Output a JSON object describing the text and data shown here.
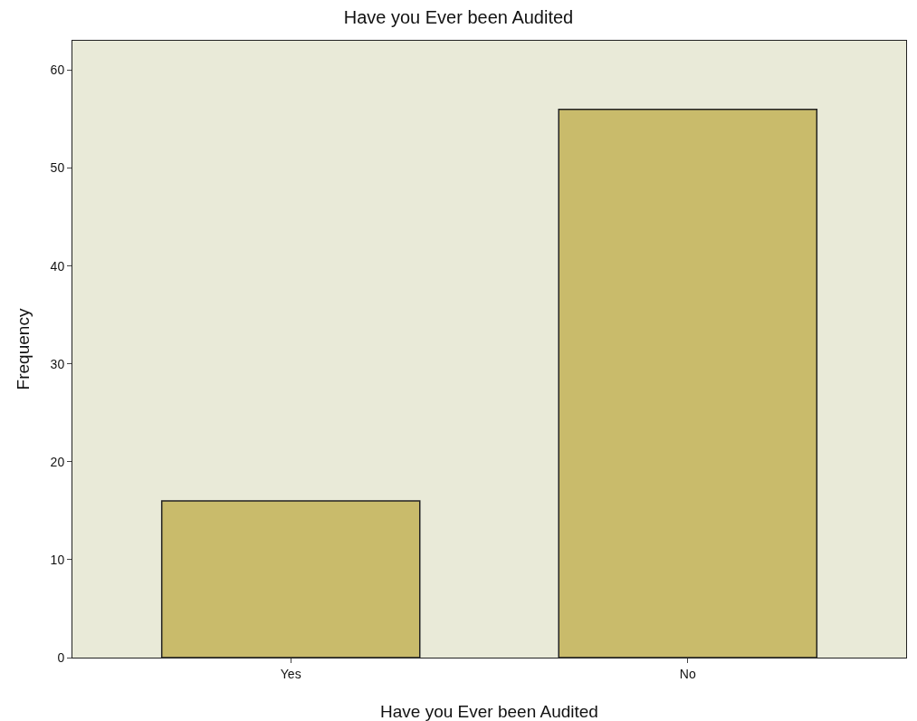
{
  "chart_data": {
    "type": "bar",
    "title": "Have you Ever been Audited",
    "xlabel": "Have you Ever been Audited",
    "ylabel": "Frequency",
    "categories": [
      "Yes",
      "No"
    ],
    "values": [
      16,
      56
    ],
    "color": "#c9bb6b",
    "ylim": [
      0,
      63
    ],
    "yticks": [
      0,
      10,
      20,
      30,
      40,
      50,
      60
    ],
    "grid": false
  }
}
